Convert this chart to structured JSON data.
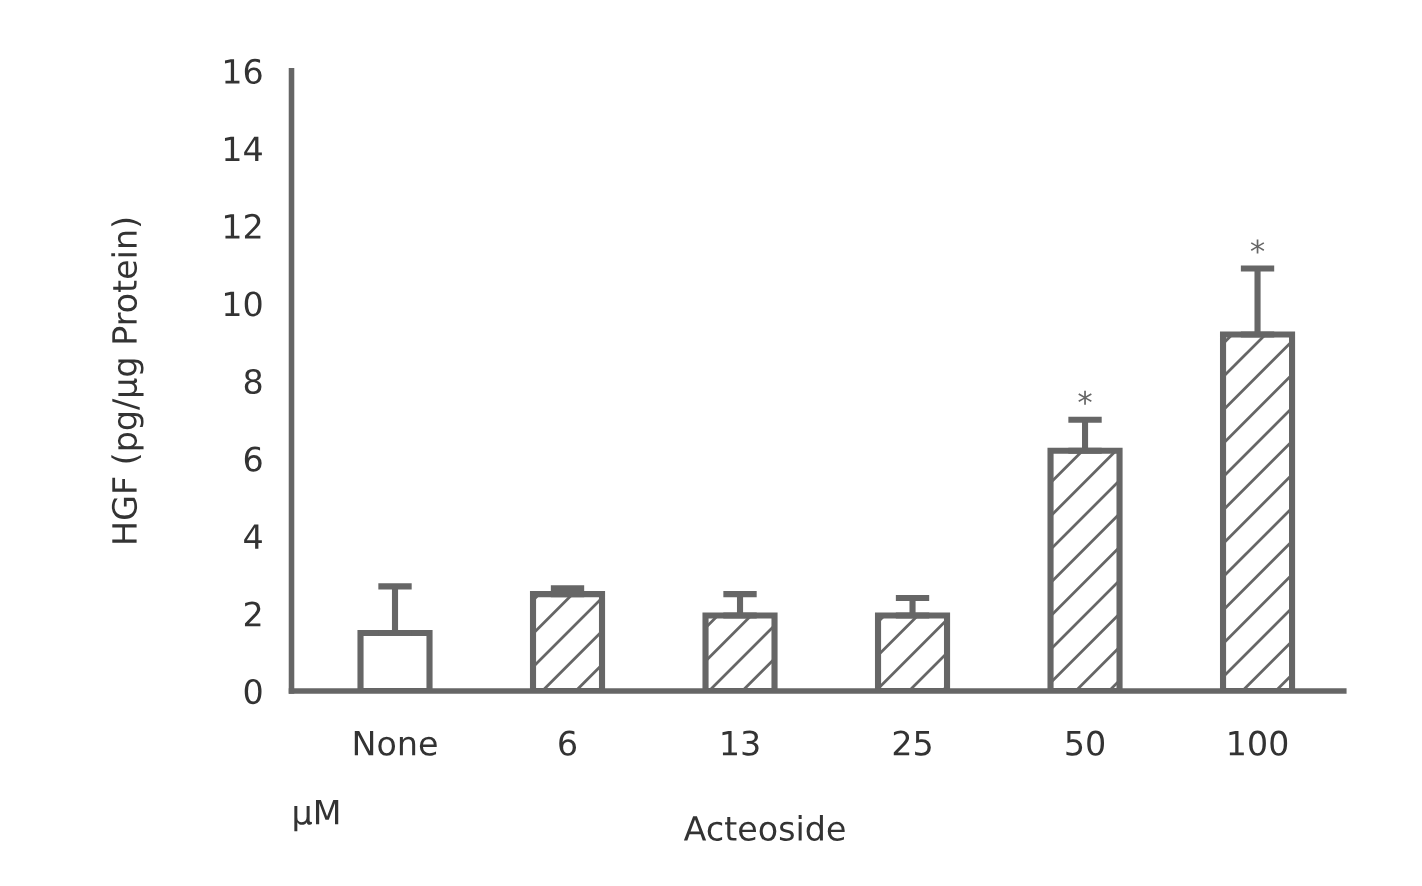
{
  "chart_data": {
    "type": "bar",
    "categories": [
      "None",
      "6",
      "13",
      "25",
      "50",
      "100"
    ],
    "values": [
      1.5,
      2.5,
      1.95,
      1.95,
      6.2,
      9.2
    ],
    "errors": [
      1.2,
      0.15,
      0.55,
      0.45,
      0.8,
      1.7
    ],
    "color": "#666666",
    "ylim": [
      0,
      16
    ],
    "yticks": [
      0,
      2,
      4,
      6,
      8,
      10,
      12,
      14,
      16
    ],
    "ylabel": "HGF (pg/µg Protein)",
    "xlabel": "Acteoside",
    "annotations": [
      {
        "text": "*",
        "x": "50",
        "y": 7.0
      },
      {
        "text": "*",
        "x": "100",
        "y": 10.9
      },
      "µM"
    ],
    "grid": false,
    "legend": false
  }
}
